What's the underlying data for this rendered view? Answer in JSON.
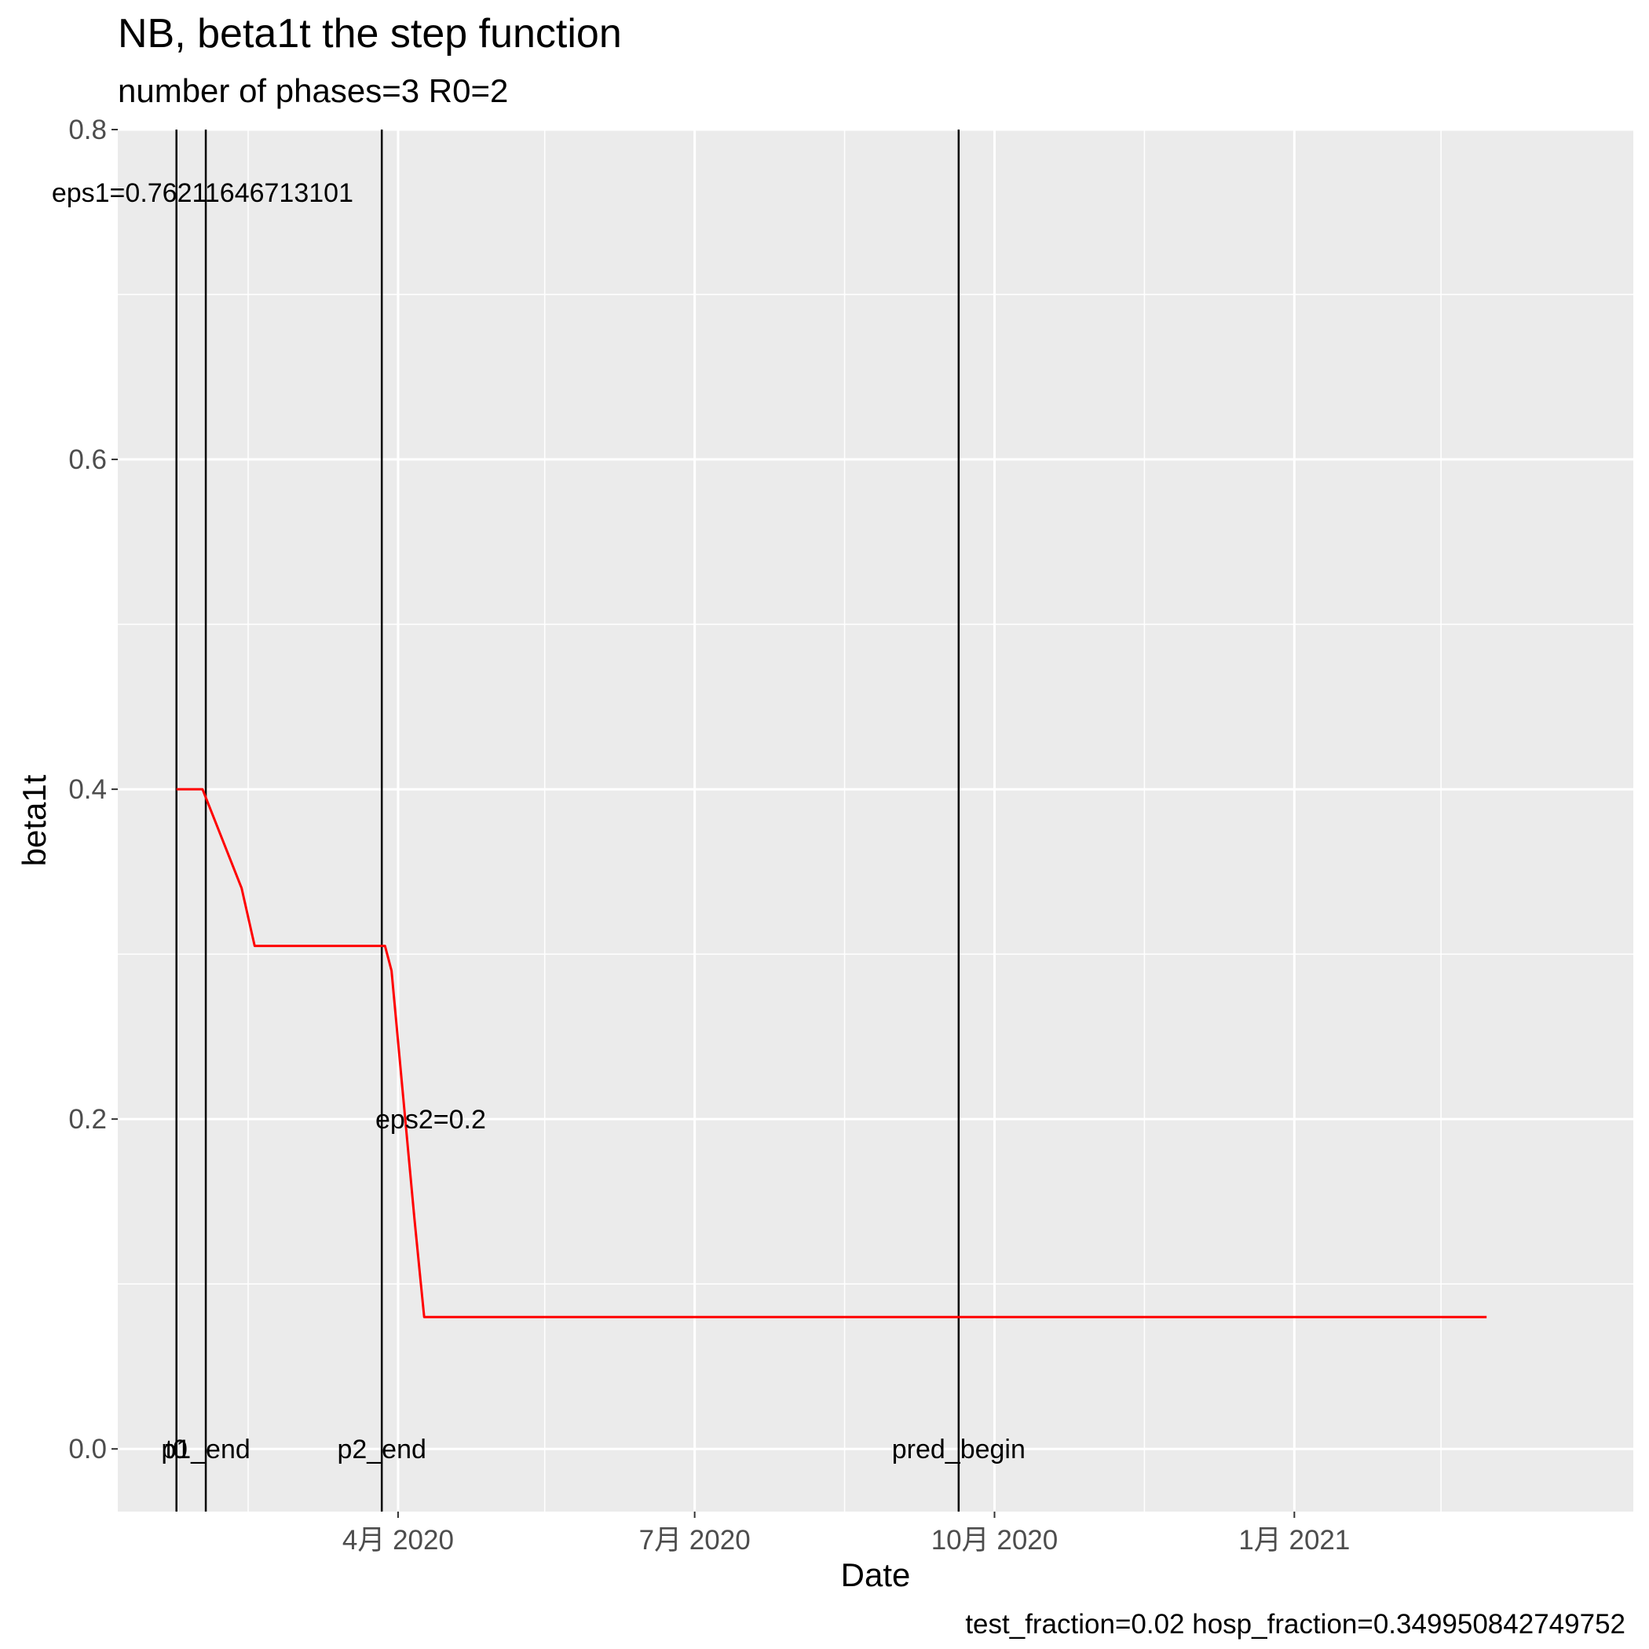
{
  "chart_data": {
    "type": "line",
    "title": "NB, beta1t the step function",
    "subtitle": "number of phases=3   R0=2",
    "caption": "test_fraction=0.02   hosp_fraction=0.349950842749752",
    "xlabel": "Date",
    "ylabel": "beta1t",
    "xlim": [
      "2020-01-06",
      "2021-04-15"
    ],
    "ylim": [
      -0.038,
      0.8
    ],
    "x_ticks": [
      {
        "date": "2020-04-01",
        "label": "4月 2020"
      },
      {
        "date": "2020-07-01",
        "label": "7月 2020"
      },
      {
        "date": "2020-10-01",
        "label": "10月 2020"
      },
      {
        "date": "2021-01-01",
        "label": "1月 2021"
      }
    ],
    "x_minor_ticks": [
      "2020-02-15",
      "2020-05-16",
      "2020-08-16",
      "2020-11-16",
      "2021-02-15"
    ],
    "y_ticks": [
      {
        "value": 0.0,
        "label": "0.0"
      },
      {
        "value": 0.2,
        "label": "0.2"
      },
      {
        "value": 0.4,
        "label": "0.4"
      },
      {
        "value": 0.6,
        "label": "0.6"
      },
      {
        "value": 0.8,
        "label": "0.8"
      }
    ],
    "y_minor_ticks": [
      0.1,
      0.3,
      0.5,
      0.7
    ],
    "grid": true,
    "series": [
      {
        "color": "#ff0000",
        "points": [
          {
            "x": "2020-01-24",
            "y": 0.4
          },
          {
            "x": "2020-02-01",
            "y": 0.4
          },
          {
            "x": "2020-02-03",
            "y": 0.39
          },
          {
            "x": "2020-02-13",
            "y": 0.34
          },
          {
            "x": "2020-02-17",
            "y": 0.305
          },
          {
            "x": "2020-03-28",
            "y": 0.305
          },
          {
            "x": "2020-03-30",
            "y": 0.29
          },
          {
            "x": "2020-04-06",
            "y": 0.14
          },
          {
            "x": "2020-04-08",
            "y": 0.1
          },
          {
            "x": "2020-04-09",
            "y": 0.08
          },
          {
            "x": "2021-03-01",
            "y": 0.08
          }
        ]
      }
    ],
    "vlines": [
      {
        "x": "2020-01-24",
        "label": "t0"
      },
      {
        "x": "2020-02-02",
        "label": "p1_end"
      },
      {
        "x": "2020-03-27",
        "label": "p2_end"
      },
      {
        "x": "2020-09-20",
        "label": "pred_begin"
      }
    ],
    "annotations": [
      {
        "text": "eps1=0.76211646713101",
        "x": "2020-02-01",
        "y": 0.762
      },
      {
        "text": "eps2=0.2",
        "x": "2020-04-11",
        "y": 0.2
      }
    ]
  }
}
